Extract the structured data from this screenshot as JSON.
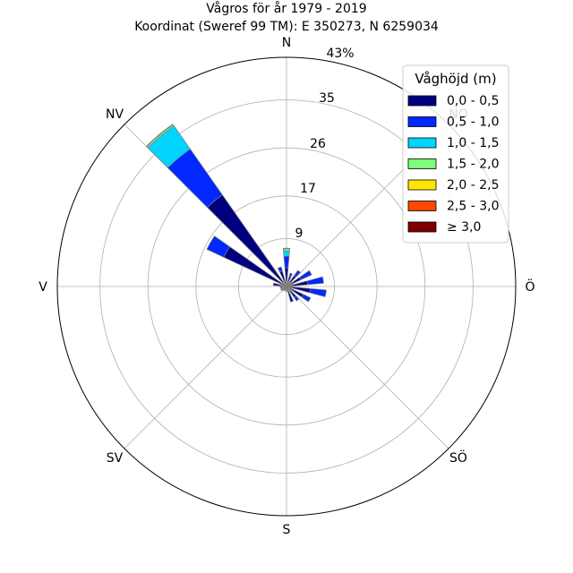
{
  "chart_data": {
    "type": "polar-stacked-bar",
    "title_line1": "Vågros för år 1979 - 2019",
    "title_line2": "Koordinat (Sweref 99 TM): E 350273, N 6259034",
    "directions": [
      "N",
      "NO",
      "Ö",
      "SÖ",
      "S",
      "SV",
      "V",
      "NV"
    ],
    "ring_labels": [
      "9",
      "17",
      "26",
      "35",
      "43%"
    ],
    "rmax": 43,
    "grid": true,
    "legend": {
      "title": "Våghöjd (m)",
      "placement": "top-right",
      "items": [
        {
          "label": "0,0 - 0,5",
          "color": "#00007f"
        },
        {
          "label": "0,5 - 1,0",
          "color": "#0028ff"
        },
        {
          "label": "1,0 - 1,5",
          "color": "#00d4ff"
        },
        {
          "label": "1,5 - 2,0",
          "color": "#7dff7a"
        },
        {
          "label": "2,0 - 2,5",
          "color": "#ffe600"
        },
        {
          "label": "2,5 - 3,0",
          "color": "#ff4700"
        },
        {
          "label": "≥ 3,0",
          "color": "#7f0000"
        }
      ]
    },
    "sector_width_deg": 10,
    "bars": [
      {
        "dir_deg": 0,
        "values": [
          3.5,
          2.2,
          1.0,
          0.4,
          0.1,
          0,
          0
        ]
      },
      {
        "dir_deg": 20,
        "values": [
          2.0,
          0.6,
          0,
          0,
          0,
          0,
          0
        ]
      },
      {
        "dir_deg": 40,
        "values": [
          2.5,
          1.2,
          0,
          0,
          0,
          0,
          0
        ]
      },
      {
        "dir_deg": 60,
        "values": [
          3.0,
          2.2,
          0,
          0,
          0,
          0,
          0
        ]
      },
      {
        "dir_deg": 80,
        "values": [
          4.0,
          3.0,
          0,
          0,
          0,
          0,
          0
        ]
      },
      {
        "dir_deg": 100,
        "values": [
          4.5,
          3.0,
          0,
          0,
          0,
          0,
          0
        ]
      },
      {
        "dir_deg": 120,
        "values": [
          3.5,
          1.5,
          0,
          0,
          0,
          0,
          0
        ]
      },
      {
        "dir_deg": 140,
        "values": [
          2.5,
          0.8,
          0,
          0,
          0,
          0,
          0
        ]
      },
      {
        "dir_deg": 160,
        "values": [
          3.0,
          0,
          0,
          0,
          0,
          0,
          0
        ]
      },
      {
        "dir_deg": 180,
        "values": [
          1.0,
          0,
          0,
          0,
          0,
          0,
          0
        ]
      },
      {
        "dir_deg": 200,
        "values": [
          0.8,
          0,
          0,
          0,
          0,
          0,
          0
        ]
      },
      {
        "dir_deg": 220,
        "values": [
          1.0,
          0,
          0,
          0,
          0,
          0,
          0
        ]
      },
      {
        "dir_deg": 240,
        "values": [
          1.2,
          0,
          0,
          0,
          0,
          0,
          0
        ]
      },
      {
        "dir_deg": 260,
        "values": [
          1.2,
          0,
          0,
          0,
          0,
          0,
          0
        ]
      },
      {
        "dir_deg": 280,
        "values": [
          2.5,
          0,
          0,
          0,
          0,
          0,
          0
        ]
      },
      {
        "dir_deg": 300,
        "values": [
          13.0,
          3.5,
          0,
          0,
          0,
          0,
          0
        ]
      },
      {
        "dir_deg": 320,
        "values": [
          21.0,
          10.5,
          5.3,
          0.3,
          0.1,
          0,
          0
        ]
      },
      {
        "dir_deg": 340,
        "values": [
          3.0,
          0.8,
          0,
          0,
          0,
          0,
          0
        ]
      }
    ]
  }
}
